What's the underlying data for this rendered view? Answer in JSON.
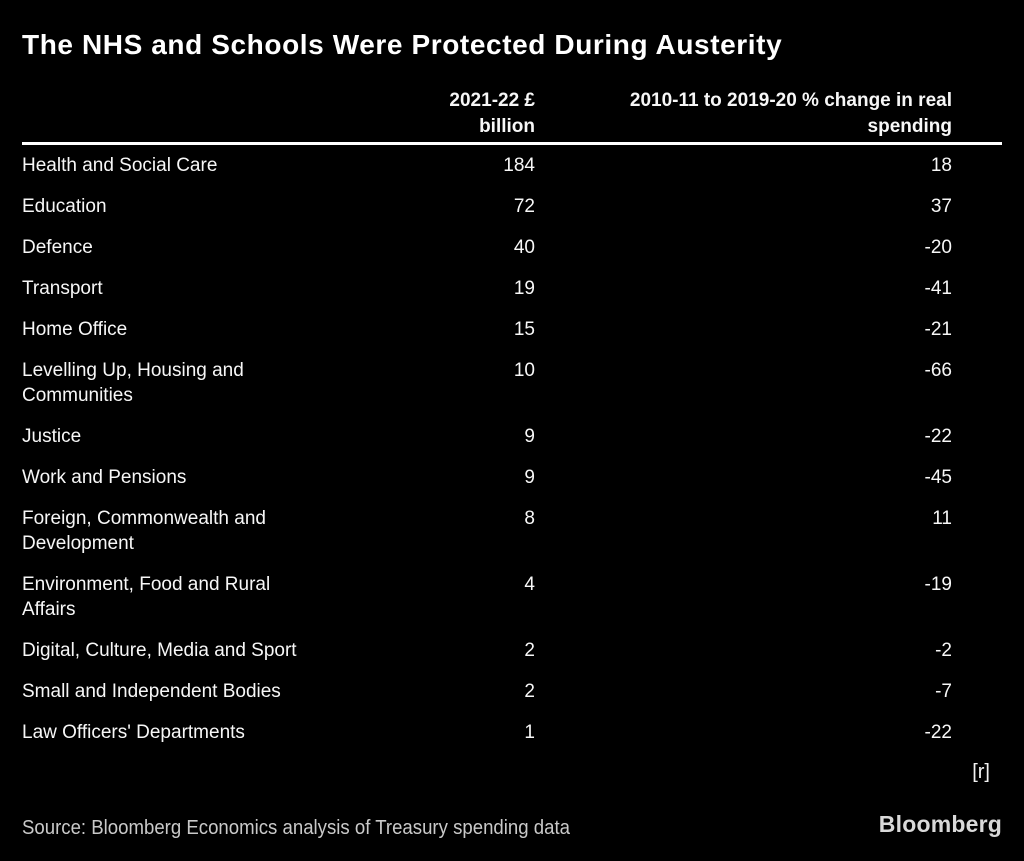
{
  "title": "The NHS and Schools Were Protected During Austerity",
  "table": {
    "header": {
      "col_billion": "2021-22 £\nbillion",
      "col_change": "2010-11 to 2019-20 % change in real\nspending"
    },
    "rows": [
      {
        "label": "Health and Social Care",
        "billion": "184",
        "change": "18"
      },
      {
        "label": "Education",
        "billion": "72",
        "change": "37"
      },
      {
        "label": "Defence",
        "billion": "40",
        "change": "-20"
      },
      {
        "label": "Transport",
        "billion": "19",
        "change": "-41"
      },
      {
        "label": "Home Office",
        "billion": "15",
        "change": "-21"
      },
      {
        "label": "Levelling Up, Housing and\nCommunities",
        "billion": "10",
        "change": "-66"
      },
      {
        "label": "Justice",
        "billion": "9",
        "change": "-22"
      },
      {
        "label": "Work and Pensions",
        "billion": "9",
        "change": "-45"
      },
      {
        "label": "Foreign, Commonwealth and\nDevelopment",
        "billion": "8",
        "change": "11"
      },
      {
        "label": "Environment, Food and Rural\nAffairs",
        "billion": "4",
        "change": "-19"
      },
      {
        "label": "Digital, Culture, Media and Sport",
        "billion": "2",
        "change": "-2"
      },
      {
        "label": "Small and Independent Bodies",
        "billion": "2",
        "change": "-7"
      },
      {
        "label": "Law Officers' Departments",
        "billion": "1",
        "change": "-22"
      }
    ]
  },
  "revision_note": "[r]",
  "source": "Source: Bloomberg Economics analysis of Treasury spending data",
  "brand": "Bloomberg",
  "colors": {
    "background": "#000000",
    "text": "#f7f7f7",
    "rule": "#ffffff",
    "muted": "#c9c9c9"
  },
  "chart_data": {
    "type": "table",
    "title": "The NHS and Schools Were Protected During Austerity",
    "categories": [
      "Health and Social Care",
      "Education",
      "Defence",
      "Transport",
      "Home Office",
      "Levelling Up, Housing and Communities",
      "Justice",
      "Work and Pensions",
      "Foreign, Commonwealth and Development",
      "Environment, Food and Rural Affairs",
      "Digital, Culture, Media and Sport",
      "Small and Independent Bodies",
      "Law Officers' Departments"
    ],
    "series": [
      {
        "name": "2021-22 £ billion",
        "values": [
          184,
          72,
          40,
          19,
          15,
          10,
          9,
          9,
          8,
          4,
          2,
          2,
          1
        ]
      },
      {
        "name": "2010-11 to 2019-20 % change in real spending",
        "values": [
          18,
          37,
          -20,
          -41,
          -21,
          -66,
          -22,
          -45,
          11,
          -19,
          -2,
          -7,
          -22
        ]
      }
    ],
    "source": "Source: Bloomberg Economics analysis of Treasury spending data",
    "layout_hints": {
      "value_columns_right_aligned": true,
      "grid": "header-rule-only",
      "legend": "none"
    }
  }
}
